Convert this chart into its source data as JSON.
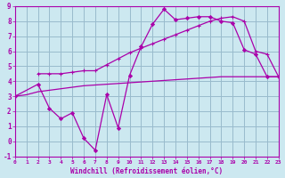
{
  "xlabel": "Windchill (Refroidissement éolien,°C)",
  "line_color": "#aa00aa",
  "bg_color": "#cce8f0",
  "grid_color": "#99bbcc",
  "xlim": [
    0,
    23
  ],
  "ylim": [
    -1,
    9
  ],
  "xticks": [
    0,
    1,
    2,
    3,
    4,
    5,
    6,
    7,
    8,
    9,
    10,
    11,
    12,
    13,
    14,
    15,
    16,
    17,
    18,
    19,
    20,
    21,
    22,
    23
  ],
  "yticks": [
    -1,
    0,
    1,
    2,
    3,
    4,
    5,
    6,
    7,
    8,
    9
  ],
  "line_zigzag_x": [
    0,
    2,
    3,
    4,
    5,
    6,
    7,
    8,
    9,
    10,
    11,
    12,
    13,
    14,
    15,
    16,
    17,
    18,
    19,
    20,
    21,
    22,
    23
  ],
  "line_zigzag_y": [
    3.0,
    3.8,
    2.2,
    1.5,
    1.9,
    0.2,
    -0.6,
    3.1,
    0.9,
    4.4,
    6.3,
    7.8,
    8.8,
    8.1,
    8.2,
    8.3,
    8.3,
    8.0,
    7.9,
    6.1,
    5.8,
    4.3,
    4.3
  ],
  "line_upper_x": [
    2,
    3,
    4,
    5,
    6,
    7,
    8,
    9,
    10,
    11,
    12,
    13,
    14,
    15,
    16,
    17,
    18,
    19,
    20,
    21,
    22,
    23
  ],
  "line_upper_y": [
    4.5,
    4.5,
    4.5,
    4.6,
    4.7,
    4.7,
    5.1,
    5.5,
    5.9,
    6.2,
    6.5,
    6.8,
    7.1,
    7.4,
    7.7,
    8.0,
    8.2,
    8.3,
    8.0,
    6.0,
    5.8,
    4.3
  ],
  "line_lower_x": [
    0,
    1,
    2,
    3,
    4,
    5,
    6,
    7,
    8,
    9,
    10,
    11,
    12,
    13,
    14,
    15,
    16,
    17,
    18,
    19,
    20,
    21,
    22,
    23
  ],
  "line_lower_y": [
    3.0,
    3.1,
    3.3,
    3.4,
    3.5,
    3.6,
    3.7,
    3.75,
    3.8,
    3.85,
    3.9,
    3.95,
    4.0,
    4.05,
    4.1,
    4.15,
    4.2,
    4.25,
    4.3,
    4.3,
    4.3,
    4.3,
    4.3,
    4.3
  ]
}
